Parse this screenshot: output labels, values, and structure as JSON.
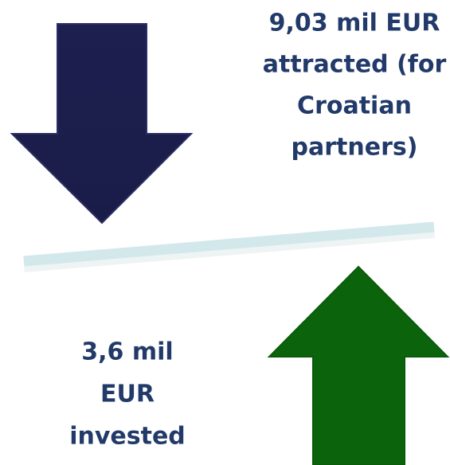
{
  "top_text": {
    "lines": [
      "9,03 mil EUR",
      "attracted (for",
      "Croatian",
      "partners)"
    ]
  },
  "bottom_text": {
    "lines": [
      "3,6 mil",
      "EUR",
      "invested"
    ]
  }
}
